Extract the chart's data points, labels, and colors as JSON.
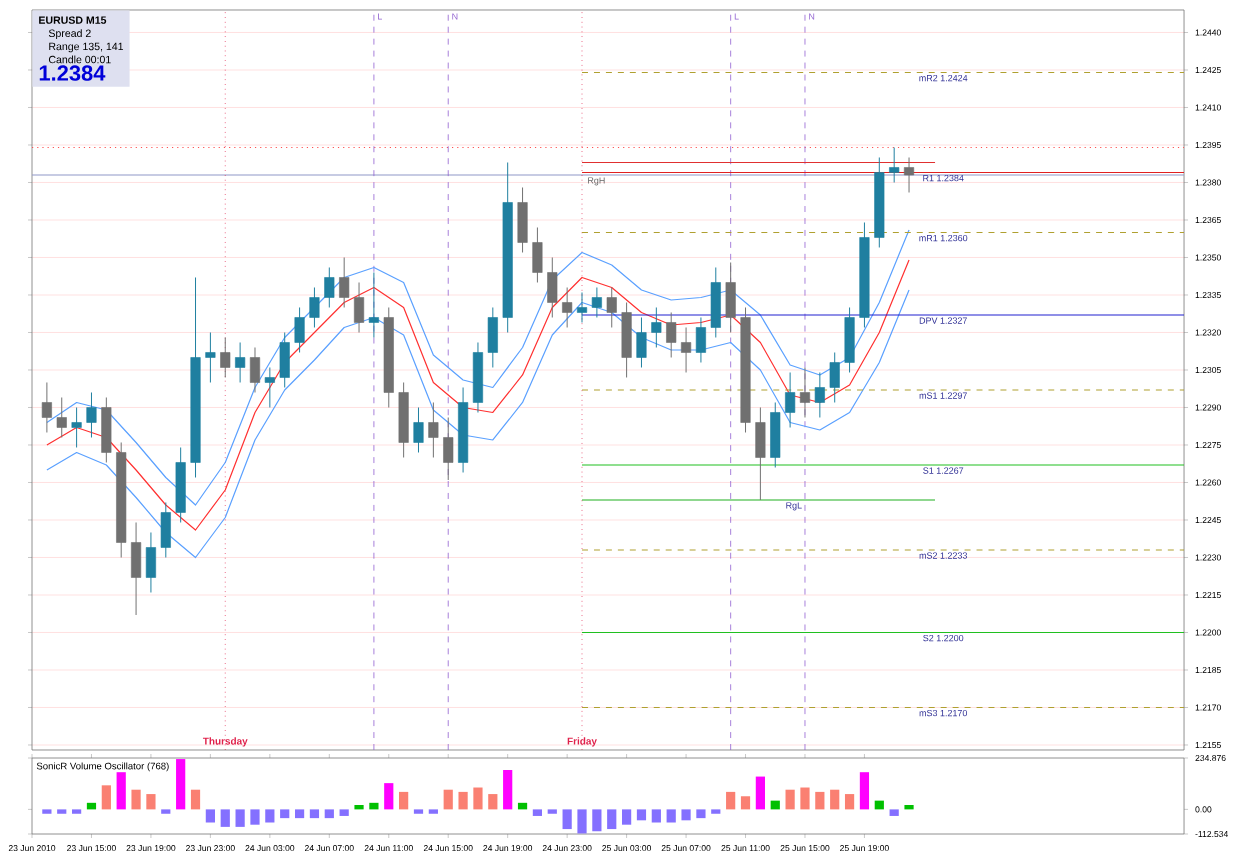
{
  "chart_data": [
    {
      "type": "candlestick",
      "annotations": [
        "EURUSD  M15",
        "Spread  2",
        "Range  135, 141",
        "Candle  00:01",
        "1.2384"
      ],
      "xlim": [
        "2010-06-23T11:00",
        "2010-06-26T16:30"
      ],
      "ylim": [
        1.2153,
        1.2449
      ],
      "yticks": [
        {
          "value": 1.244,
          "label": "1.2440"
        },
        1.2425,
        {
          "value": 1.241,
          "label": "1.2410"
        },
        1.2395,
        {
          "value": 1.238,
          "label": "1.2380"
        },
        1.2365,
        {
          "value": 1.235,
          "label": "1.2350"
        },
        1.2335,
        {
          "value": 1.232,
          "label": "1.2320"
        },
        1.2305,
        {
          "value": 1.229,
          "label": "1.2290"
        },
        1.2275,
        {
          "value": 1.226,
          "label": "1.2260"
        },
        1.2245,
        {
          "value": 1.223,
          "label": "1.2230"
        },
        1.2215,
        {
          "value": 1.22,
          "label": "1.2200"
        },
        1.2185,
        {
          "value": 1.217,
          "label": "1.2170"
        },
        1.2155
      ],
      "grid": "y",
      "tick_labels": "y",
      "x": [
        "2010-06-23T12:00",
        "2010-06-23T13:00",
        "2010-06-23T14:00",
        "2010-06-23T15:00",
        "2010-06-23T16:00",
        "2010-06-23T17:00",
        "2010-06-23T18:00",
        "2010-06-23T19:00",
        "2010-06-23T20:00",
        "2010-06-23T21:00",
        "2010-06-23T22:00",
        "2010-06-23T23:00",
        "2010-06-24T00:00",
        "2010-06-24T01:00",
        "2010-06-24T02:00",
        "2010-06-24T03:00",
        "2010-06-24T04:00",
        "2010-06-24T05:00",
        "2010-06-24T06:00",
        "2010-06-24T07:00",
        "2010-06-24T08:00",
        "2010-06-24T09:00",
        "2010-06-24T10:00",
        "2010-06-24T11:00",
        "2010-06-24T12:00",
        "2010-06-24T13:00",
        "2010-06-24T14:00",
        "2010-06-24T15:00",
        "2010-06-24T16:00",
        "2010-06-24T17:00",
        "2010-06-24T18:00",
        "2010-06-24T19:00",
        "2010-06-24T20:00",
        "2010-06-24T21:00",
        "2010-06-24T22:00",
        "2010-06-24T23:00",
        "2010-06-25T00:00",
        "2010-06-25T01:00",
        "2010-06-25T02:00",
        "2010-06-25T03:00",
        "2010-06-25T04:00",
        "2010-06-25T05:00",
        "2010-06-25T06:00",
        "2010-06-25T07:00",
        "2010-06-25T08:00",
        "2010-06-25T09:00",
        "2010-06-25T10:00",
        "2010-06-25T11:00",
        "2010-06-25T12:00",
        "2010-06-25T13:00",
        "2010-06-25T14:00",
        "2010-06-25T15:00",
        "2010-06-25T16:00",
        "2010-06-25T17:00",
        "2010-06-25T18:00",
        "2010-06-25T19:00",
        "2010-06-25T20:00",
        "2010-06-25T21:00",
        "2010-06-25T22:00"
      ],
      "ohlc": [
        [
          1.2292,
          1.23,
          1.228,
          1.2286
        ],
        [
          1.2286,
          1.2294,
          1.2278,
          1.2282
        ],
        [
          1.2282,
          1.229,
          1.2274,
          1.2284
        ],
        [
          1.2284,
          1.2296,
          1.2278,
          1.229
        ],
        [
          1.229,
          1.2294,
          1.2268,
          1.2272
        ],
        [
          1.2272,
          1.2276,
          1.223,
          1.2236
        ],
        [
          1.2236,
          1.2244,
          1.2207,
          1.2222
        ],
        [
          1.2222,
          1.224,
          1.2216,
          1.2234
        ],
        [
          1.2234,
          1.2252,
          1.223,
          1.2248
        ],
        [
          1.2248,
          1.2274,
          1.2244,
          1.2268
        ],
        [
          1.2268,
          1.2342,
          1.2262,
          1.231
        ],
        [
          1.231,
          1.232,
          1.23,
          1.2312
        ],
        [
          1.2312,
          1.2318,
          1.2302,
          1.2306
        ],
        [
          1.2306,
          1.2316,
          1.23,
          1.231
        ],
        [
          1.231,
          1.2314,
          1.2296,
          1.23
        ],
        [
          1.23,
          1.2306,
          1.229,
          1.2302
        ],
        [
          1.2302,
          1.232,
          1.2298,
          1.2316
        ],
        [
          1.2316,
          1.233,
          1.2312,
          1.2326
        ],
        [
          1.2326,
          1.2338,
          1.2322,
          1.2334
        ],
        [
          1.2334,
          1.2346,
          1.233,
          1.2342
        ],
        [
          1.2342,
          1.235,
          1.233,
          1.2334
        ],
        [
          1.2334,
          1.234,
          1.232,
          1.2324
        ],
        [
          1.2324,
          1.2344,
          1.2318,
          1.2326
        ],
        [
          1.2326,
          1.233,
          1.229,
          1.2296
        ],
        [
          1.2296,
          1.23,
          1.227,
          1.2276
        ],
        [
          1.2276,
          1.229,
          1.2272,
          1.2284
        ],
        [
          1.2284,
          1.2292,
          1.227,
          1.2278
        ],
        [
          1.2278,
          1.2286,
          1.2261,
          1.2268
        ],
        [
          1.2268,
          1.2298,
          1.2264,
          1.2292
        ],
        [
          1.2292,
          1.2316,
          1.2288,
          1.2312
        ],
        [
          1.2312,
          1.233,
          1.2306,
          1.2326
        ],
        [
          1.2326,
          1.2388,
          1.232,
          1.2372
        ],
        [
          1.2372,
          1.2378,
          1.2352,
          1.2356
        ],
        [
          1.2356,
          1.2362,
          1.234,
          1.2344
        ],
        [
          1.2344,
          1.235,
          1.2326,
          1.2332
        ],
        [
          1.2332,
          1.2338,
          1.2322,
          1.2328
        ],
        [
          1.2328,
          1.2336,
          1.2324,
          1.233
        ],
        [
          1.233,
          1.2338,
          1.2326,
          1.2334
        ],
        [
          1.2334,
          1.2338,
          1.2322,
          1.2328
        ],
        [
          1.2328,
          1.2332,
          1.2302,
          1.231
        ],
        [
          1.231,
          1.2326,
          1.2306,
          1.232
        ],
        [
          1.232,
          1.233,
          1.2314,
          1.2324
        ],
        [
          1.2324,
          1.2328,
          1.231,
          1.2316
        ],
        [
          1.2316,
          1.2322,
          1.2304,
          1.2312
        ],
        [
          1.2312,
          1.2326,
          1.2308,
          1.2322
        ],
        [
          1.2322,
          1.2346,
          1.2318,
          1.234
        ],
        [
          1.234,
          1.2348,
          1.232,
          1.2326
        ],
        [
          1.2326,
          1.233,
          1.228,
          1.2284
        ],
        [
          1.2284,
          1.229,
          1.2253,
          1.227
        ],
        [
          1.227,
          1.2292,
          1.2266,
          1.2288
        ],
        [
          1.2288,
          1.2304,
          1.2282,
          1.2296
        ],
        [
          1.2296,
          1.2306,
          1.2286,
          1.2292
        ],
        [
          1.2292,
          1.2304,
          1.2286,
          1.2298
        ],
        [
          1.2298,
          1.2312,
          1.2292,
          1.2308
        ],
        [
          1.2308,
          1.233,
          1.2304,
          1.2326
        ],
        [
          1.2326,
          1.2364,
          1.2322,
          1.2358
        ],
        [
          1.2358,
          1.239,
          1.2354,
          1.2384
        ],
        [
          1.2384,
          1.2394,
          1.238,
          1.2386
        ],
        [
          1.2386,
          1.239,
          1.2376,
          1.2383
        ]
      ],
      "series": [
        {
          "type": "line",
          "color": "#5aa0ff",
          "line_style": "solid",
          "x": [
            "2010-06-23T12:00",
            "2010-06-23T14:00",
            "2010-06-23T16:00",
            "2010-06-23T18:00",
            "2010-06-23T20:00",
            "2010-06-23T22:00",
            "2010-06-24T00:00",
            "2010-06-24T02:00",
            "2010-06-24T04:00",
            "2010-06-24T06:00",
            "2010-06-24T08:00",
            "2010-06-24T10:00",
            "2010-06-24T12:00",
            "2010-06-24T14:00",
            "2010-06-24T16:00",
            "2010-06-24T18:00",
            "2010-06-24T20:00",
            "2010-06-24T22:00",
            "2010-06-25T00:00",
            "2010-06-25T02:00",
            "2010-06-25T04:00",
            "2010-06-25T06:00",
            "2010-06-25T08:00",
            "2010-06-25T10:00",
            "2010-06-25T12:00",
            "2010-06-25T14:00",
            "2010-06-25T16:00",
            "2010-06-25T18:00",
            "2010-06-25T20:00",
            "2010-06-25T22:00"
          ],
          "values": [
            1.2284,
            1.2292,
            1.2289,
            1.2276,
            1.2262,
            1.2251,
            1.2268,
            1.2298,
            1.2318,
            1.233,
            1.2342,
            1.2346,
            1.234,
            1.2311,
            1.2301,
            1.2298,
            1.2314,
            1.2341,
            1.2352,
            1.2347,
            1.2337,
            1.2333,
            1.2334,
            1.2337,
            1.2327,
            1.2307,
            1.2303,
            1.231,
            1.2332,
            1.2361
          ]
        },
        {
          "type": "line",
          "color": "#ff3030",
          "line_style": "solid",
          "x": [
            "2010-06-23T12:00",
            "2010-06-23T14:00",
            "2010-06-23T16:00",
            "2010-06-23T18:00",
            "2010-06-23T20:00",
            "2010-06-23T22:00",
            "2010-06-24T00:00",
            "2010-06-24T02:00",
            "2010-06-24T04:00",
            "2010-06-24T06:00",
            "2010-06-24T08:00",
            "2010-06-24T10:00",
            "2010-06-24T12:00",
            "2010-06-24T14:00",
            "2010-06-24T16:00",
            "2010-06-24T18:00",
            "2010-06-24T20:00",
            "2010-06-24T22:00",
            "2010-06-25T00:00",
            "2010-06-25T02:00",
            "2010-06-25T04:00",
            "2010-06-25T06:00",
            "2010-06-25T08:00",
            "2010-06-25T10:00",
            "2010-06-25T12:00",
            "2010-06-25T14:00",
            "2010-06-25T16:00",
            "2010-06-25T18:00",
            "2010-06-25T20:00",
            "2010-06-25T22:00"
          ],
          "values": [
            1.2275,
            1.2282,
            1.2278,
            1.2265,
            1.2251,
            1.2241,
            1.2257,
            1.2288,
            1.2308,
            1.232,
            1.2332,
            1.2338,
            1.233,
            1.23,
            1.229,
            1.2288,
            1.2303,
            1.233,
            1.2342,
            1.2338,
            1.2328,
            1.2323,
            1.2324,
            1.2327,
            1.2316,
            1.2295,
            1.2292,
            1.2299,
            1.232,
            1.2349
          ]
        },
        {
          "type": "line",
          "color": "#5aa0ff",
          "line_style": "solid",
          "x": [
            "2010-06-23T12:00",
            "2010-06-23T14:00",
            "2010-06-23T16:00",
            "2010-06-23T18:00",
            "2010-06-23T20:00",
            "2010-06-23T22:00",
            "2010-06-24T00:00",
            "2010-06-24T02:00",
            "2010-06-24T04:00",
            "2010-06-24T06:00",
            "2010-06-24T08:00",
            "2010-06-24T10:00",
            "2010-06-24T12:00",
            "2010-06-24T14:00",
            "2010-06-24T16:00",
            "2010-06-24T18:00",
            "2010-06-24T20:00",
            "2010-06-24T22:00",
            "2010-06-25T00:00",
            "2010-06-25T02:00",
            "2010-06-25T04:00",
            "2010-06-25T06:00",
            "2010-06-25T08:00",
            "2010-06-25T10:00",
            "2010-06-25T12:00",
            "2010-06-25T14:00",
            "2010-06-25T16:00",
            "2010-06-25T18:00",
            "2010-06-25T20:00",
            "2010-06-25T22:00"
          ],
          "values": [
            1.2265,
            1.2272,
            1.2267,
            1.2254,
            1.224,
            1.223,
            1.2246,
            1.2277,
            1.2297,
            1.2309,
            1.2322,
            1.2326,
            1.2319,
            1.2289,
            1.2279,
            1.2277,
            1.2292,
            1.2319,
            1.2332,
            1.2328,
            1.2318,
            1.2313,
            1.2313,
            1.2316,
            1.2305,
            1.2284,
            1.2281,
            1.2288,
            1.2308,
            1.2337
          ]
        },
        {
          "type": "line",
          "name": "mR2  1.2424",
          "color": "#b0a030",
          "line_style": "dashed",
          "x": [
            "2010-06-25T00:00",
            "2010-06-26T16:30"
          ],
          "values": [
            1.2424,
            1.2424
          ]
        },
        {
          "type": "line",
          "name": "R1  1.2384",
          "color": "#e02020",
          "line_style": "solid",
          "x": [
            "2010-06-25T00:00",
            "2010-06-26T16:30"
          ],
          "values": [
            1.2384,
            1.2384
          ]
        },
        {
          "type": "line",
          "name": "mR1  1.2360",
          "color": "#b0a030",
          "line_style": "dashed",
          "x": [
            "2010-06-25T00:00",
            "2010-06-26T16:30"
          ],
          "values": [
            1.236,
            1.236
          ]
        },
        {
          "type": "line",
          "name": "DPV  1.2327",
          "color": "#2020d0",
          "line_style": "solid",
          "x": [
            "2010-06-25T00:00",
            "2010-06-26T16:30"
          ],
          "values": [
            1.2327,
            1.2327
          ]
        },
        {
          "type": "line",
          "name": "mS1  1.2297",
          "color": "#b0a030",
          "line_style": "dashed",
          "x": [
            "2010-06-25T00:00",
            "2010-06-26T16:30"
          ],
          "values": [
            1.2297,
            1.2297
          ]
        },
        {
          "type": "line",
          "name": "S1  1.2267",
          "color": "#20c020",
          "line_style": "solid",
          "x": [
            "2010-06-25T00:00",
            "2010-06-26T16:30"
          ],
          "values": [
            1.2267,
            1.2267
          ]
        },
        {
          "type": "line",
          "name": "mS2  1.2233",
          "color": "#b0a030",
          "line_style": "dashed",
          "x": [
            "2010-06-25T00:00",
            "2010-06-26T16:30"
          ],
          "values": [
            1.2233,
            1.2233
          ]
        },
        {
          "type": "line",
          "name": "S2  1.2200",
          "color": "#20c020",
          "line_style": "solid",
          "x": [
            "2010-06-25T00:00",
            "2010-06-26T16:30"
          ],
          "values": [
            1.22,
            1.22
          ]
        },
        {
          "type": "line",
          "name": "mS3  1.2170",
          "color": "#b0a030",
          "line_style": "dashed",
          "x": [
            "2010-06-25T00:00",
            "2010-06-26T16:30"
          ],
          "values": [
            1.217,
            1.217
          ]
        },
        {
          "type": "line",
          "name": "RgL",
          "color": "#20b020",
          "line_style": "solid",
          "x": [
            "2010-06-25T00:00",
            "2010-06-25T23:45"
          ],
          "values": [
            1.2253,
            1.2253
          ]
        },
        {
          "type": "line",
          "color": "#e03030",
          "line_style": "solid",
          "x": [
            "2010-06-25T00:00",
            "2010-06-25T23:45"
          ],
          "values": [
            1.2388,
            1.2388
          ]
        }
      ],
      "ref_lines": [
        {
          "axis": "y",
          "value": 1.2383,
          "label": "RgH",
          "color": "#9098c8",
          "line_style": "solid"
        },
        {
          "axis": "y",
          "value": 1.2394,
          "color": "#ff5050",
          "line_style": "dotted"
        },
        {
          "axis": "x",
          "value": "2010-06-24T00:00",
          "label": "Thursday",
          "color": "#e0204a",
          "line_style": "dotted"
        },
        {
          "axis": "x",
          "value": "2010-06-25T00:00",
          "label": "Friday",
          "color": "#e0204a",
          "line_style": "dotted"
        },
        {
          "axis": "x",
          "value": "2010-06-24T10:00",
          "label": "L",
          "color": "#9060d0",
          "line_style": "dashed"
        },
        {
          "axis": "x",
          "value": "2010-06-24T15:00",
          "label": "N",
          "color": "#9060d0",
          "line_style": "dashed"
        },
        {
          "axis": "x",
          "value": "2010-06-25T10:00",
          "label": "L",
          "color": "#9060d0",
          "line_style": "dashed"
        },
        {
          "axis": "x",
          "value": "2010-06-25T15:00",
          "label": "N",
          "color": "#9060d0",
          "line_style": "dashed"
        }
      ]
    },
    {
      "type": "bar",
      "title": "SonicR Volume Oscillator (768)",
      "xlim": [
        "2010-06-23T11:00",
        "2010-06-26T16:30"
      ],
      "ylim": [
        -112.534,
        234.876
      ],
      "yticks": [
        234.876,
        {
          "value": 0,
          "label": "0.00"
        },
        -112.534
      ],
      "xticks": [
        {
          "value": "2010-06-23T11:00",
          "label": "23 Jun 2010"
        },
        {
          "value": "2010-06-23T15:00",
          "label": "23 Jun 15:00"
        },
        {
          "value": "2010-06-23T19:00",
          "label": "23 Jun 19:00"
        },
        {
          "value": "2010-06-23T23:00",
          "label": "23 Jun 23:00"
        },
        {
          "value": "2010-06-24T03:00",
          "label": "24 Jun 03:00"
        },
        {
          "value": "2010-06-24T07:00",
          "label": "24 Jun 07:00"
        },
        {
          "value": "2010-06-24T11:00",
          "label": "24 Jun 11:00"
        },
        {
          "value": "2010-06-24T15:00",
          "label": "24 Jun 15:00"
        },
        {
          "value": "2010-06-24T19:00",
          "label": "24 Jun 19:00"
        },
        {
          "value": "2010-06-24T23:00",
          "label": "24 Jun 23:00"
        },
        {
          "value": "2010-06-25T03:00",
          "label": "25 Jun 03:00"
        },
        {
          "value": "2010-06-25T07:00",
          "label": "25 Jun 07:00"
        },
        {
          "value": "2010-06-25T11:00",
          "label": "25 Jun 11:00"
        },
        {
          "value": "2010-06-25T15:00",
          "label": "25 Jun 15:00"
        },
        {
          "value": "2010-06-25T19:00",
          "label": "25 Jun 19:00"
        }
      ],
      "x": [
        "2010-06-23T12:00",
        "2010-06-23T13:00",
        "2010-06-23T14:00",
        "2010-06-23T15:00",
        "2010-06-23T16:00",
        "2010-06-23T17:00",
        "2010-06-23T18:00",
        "2010-06-23T19:00",
        "2010-06-23T20:00",
        "2010-06-23T21:00",
        "2010-06-23T22:00",
        "2010-06-23T23:00",
        "2010-06-24T00:00",
        "2010-06-24T01:00",
        "2010-06-24T02:00",
        "2010-06-24T03:00",
        "2010-06-24T04:00",
        "2010-06-24T05:00",
        "2010-06-24T06:00",
        "2010-06-24T07:00",
        "2010-06-24T08:00",
        "2010-06-24T09:00",
        "2010-06-24T10:00",
        "2010-06-24T11:00",
        "2010-06-24T12:00",
        "2010-06-24T13:00",
        "2010-06-24T14:00",
        "2010-06-24T15:00",
        "2010-06-24T16:00",
        "2010-06-24T17:00",
        "2010-06-24T18:00",
        "2010-06-24T19:00",
        "2010-06-24T20:00",
        "2010-06-24T21:00",
        "2010-06-24T22:00",
        "2010-06-24T23:00",
        "2010-06-25T00:00",
        "2010-06-25T01:00",
        "2010-06-25T02:00",
        "2010-06-25T03:00",
        "2010-06-25T04:00",
        "2010-06-25T05:00",
        "2010-06-25T06:00",
        "2010-06-25T07:00",
        "2010-06-25T08:00",
        "2010-06-25T09:00",
        "2010-06-25T10:00",
        "2010-06-25T11:00",
        "2010-06-25T12:00",
        "2010-06-25T13:00",
        "2010-06-25T14:00",
        "2010-06-25T15:00",
        "2010-06-25T16:00",
        "2010-06-25T17:00",
        "2010-06-25T18:00",
        "2010-06-25T19:00",
        "2010-06-25T20:00",
        "2010-06-25T21:00",
        "2010-06-25T22:00"
      ],
      "values": [
        -20,
        -20,
        -20,
        30,
        110,
        170,
        90,
        70,
        -20,
        230,
        90,
        -60,
        -80,
        -80,
        -70,
        -60,
        -40,
        -40,
        -40,
        -40,
        -30,
        20,
        30,
        120,
        80,
        -20,
        -20,
        90,
        80,
        100,
        70,
        180,
        30,
        -30,
        -20,
        -90,
        -110,
        -100,
        -90,
        -70,
        -50,
        -60,
        -60,
        -50,
        -40,
        -20,
        80,
        60,
        150,
        40,
        90,
        100,
        80,
        90,
        70,
        170,
        40,
        -30,
        20
      ],
      "colors": [
        "#8470ff",
        "#8470ff",
        "#8470ff",
        "#00c000",
        "#fa8072",
        "#ff00ff",
        "#fa8072",
        "#fa8072",
        "#8470ff",
        "#ff00ff",
        "#fa8072",
        "#8470ff",
        "#8470ff",
        "#8470ff",
        "#8470ff",
        "#8470ff",
        "#8470ff",
        "#8470ff",
        "#8470ff",
        "#8470ff",
        "#8470ff",
        "#00c000",
        "#00c000",
        "#ff00ff",
        "#fa8072",
        "#8470ff",
        "#8470ff",
        "#fa8072",
        "#fa8072",
        "#fa8072",
        "#fa8072",
        "#ff00ff",
        "#00c000",
        "#8470ff",
        "#8470ff",
        "#8470ff",
        "#8470ff",
        "#8470ff",
        "#8470ff",
        "#8470ff",
        "#8470ff",
        "#8470ff",
        "#8470ff",
        "#8470ff",
        "#8470ff",
        "#8470ff",
        "#fa8072",
        "#fa8072",
        "#ff00ff",
        "#00c000",
        "#fa8072",
        "#fa8072",
        "#fa8072",
        "#fa8072",
        "#fa8072",
        "#ff00ff",
        "#00c000",
        "#8470ff",
        "#00c000"
      ]
    }
  ]
}
